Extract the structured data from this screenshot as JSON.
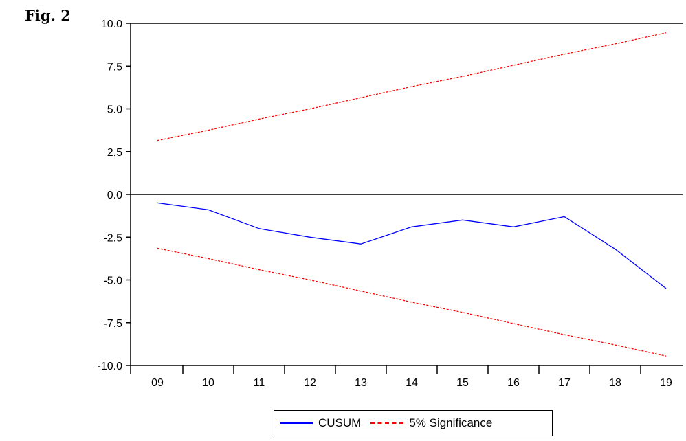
{
  "figure_label": "Fig. 2",
  "chart_data": {
    "type": "line",
    "title": "",
    "xlabel": "",
    "ylabel": "",
    "categories": [
      "09",
      "10",
      "11",
      "12",
      "13",
      "14",
      "15",
      "16",
      "17",
      "18",
      "19"
    ],
    "ylim": [
      -10.0,
      10.0
    ],
    "yticks": [
      "10.0",
      "7.5",
      "5.0",
      "2.5",
      "0.0",
      "-2.5",
      "-5.0",
      "-7.5",
      "-10.0"
    ],
    "grid": false,
    "legend_position": "bottom",
    "series": [
      {
        "name": "CUSUM",
        "style": "solid",
        "color": "#0000ff",
        "values": [
          -0.5,
          -0.9,
          -2.0,
          -2.5,
          -2.9,
          -1.9,
          -1.5,
          -1.9,
          -1.3,
          -3.2,
          -5.5
        ]
      },
      {
        "name": "5% Significance",
        "style": "dashed",
        "color": "#ff0000",
        "values": [
          3.15,
          3.75,
          4.4,
          5.0,
          5.65,
          6.3,
          6.9,
          7.55,
          8.2,
          8.8,
          9.45
        ]
      },
      {
        "name": "",
        "style": "dashed",
        "color": "#ff0000",
        "values": [
          -3.15,
          -3.75,
          -4.4,
          -5.0,
          -5.65,
          -6.3,
          -6.9,
          -7.55,
          -8.2,
          -8.8,
          -9.45
        ]
      }
    ]
  },
  "legend": {
    "items": [
      {
        "label": "CUSUM",
        "color": "#0000ff",
        "style": "solid"
      },
      {
        "label": "5% Significance",
        "color": "#ff0000",
        "style": "dashed"
      }
    ]
  }
}
